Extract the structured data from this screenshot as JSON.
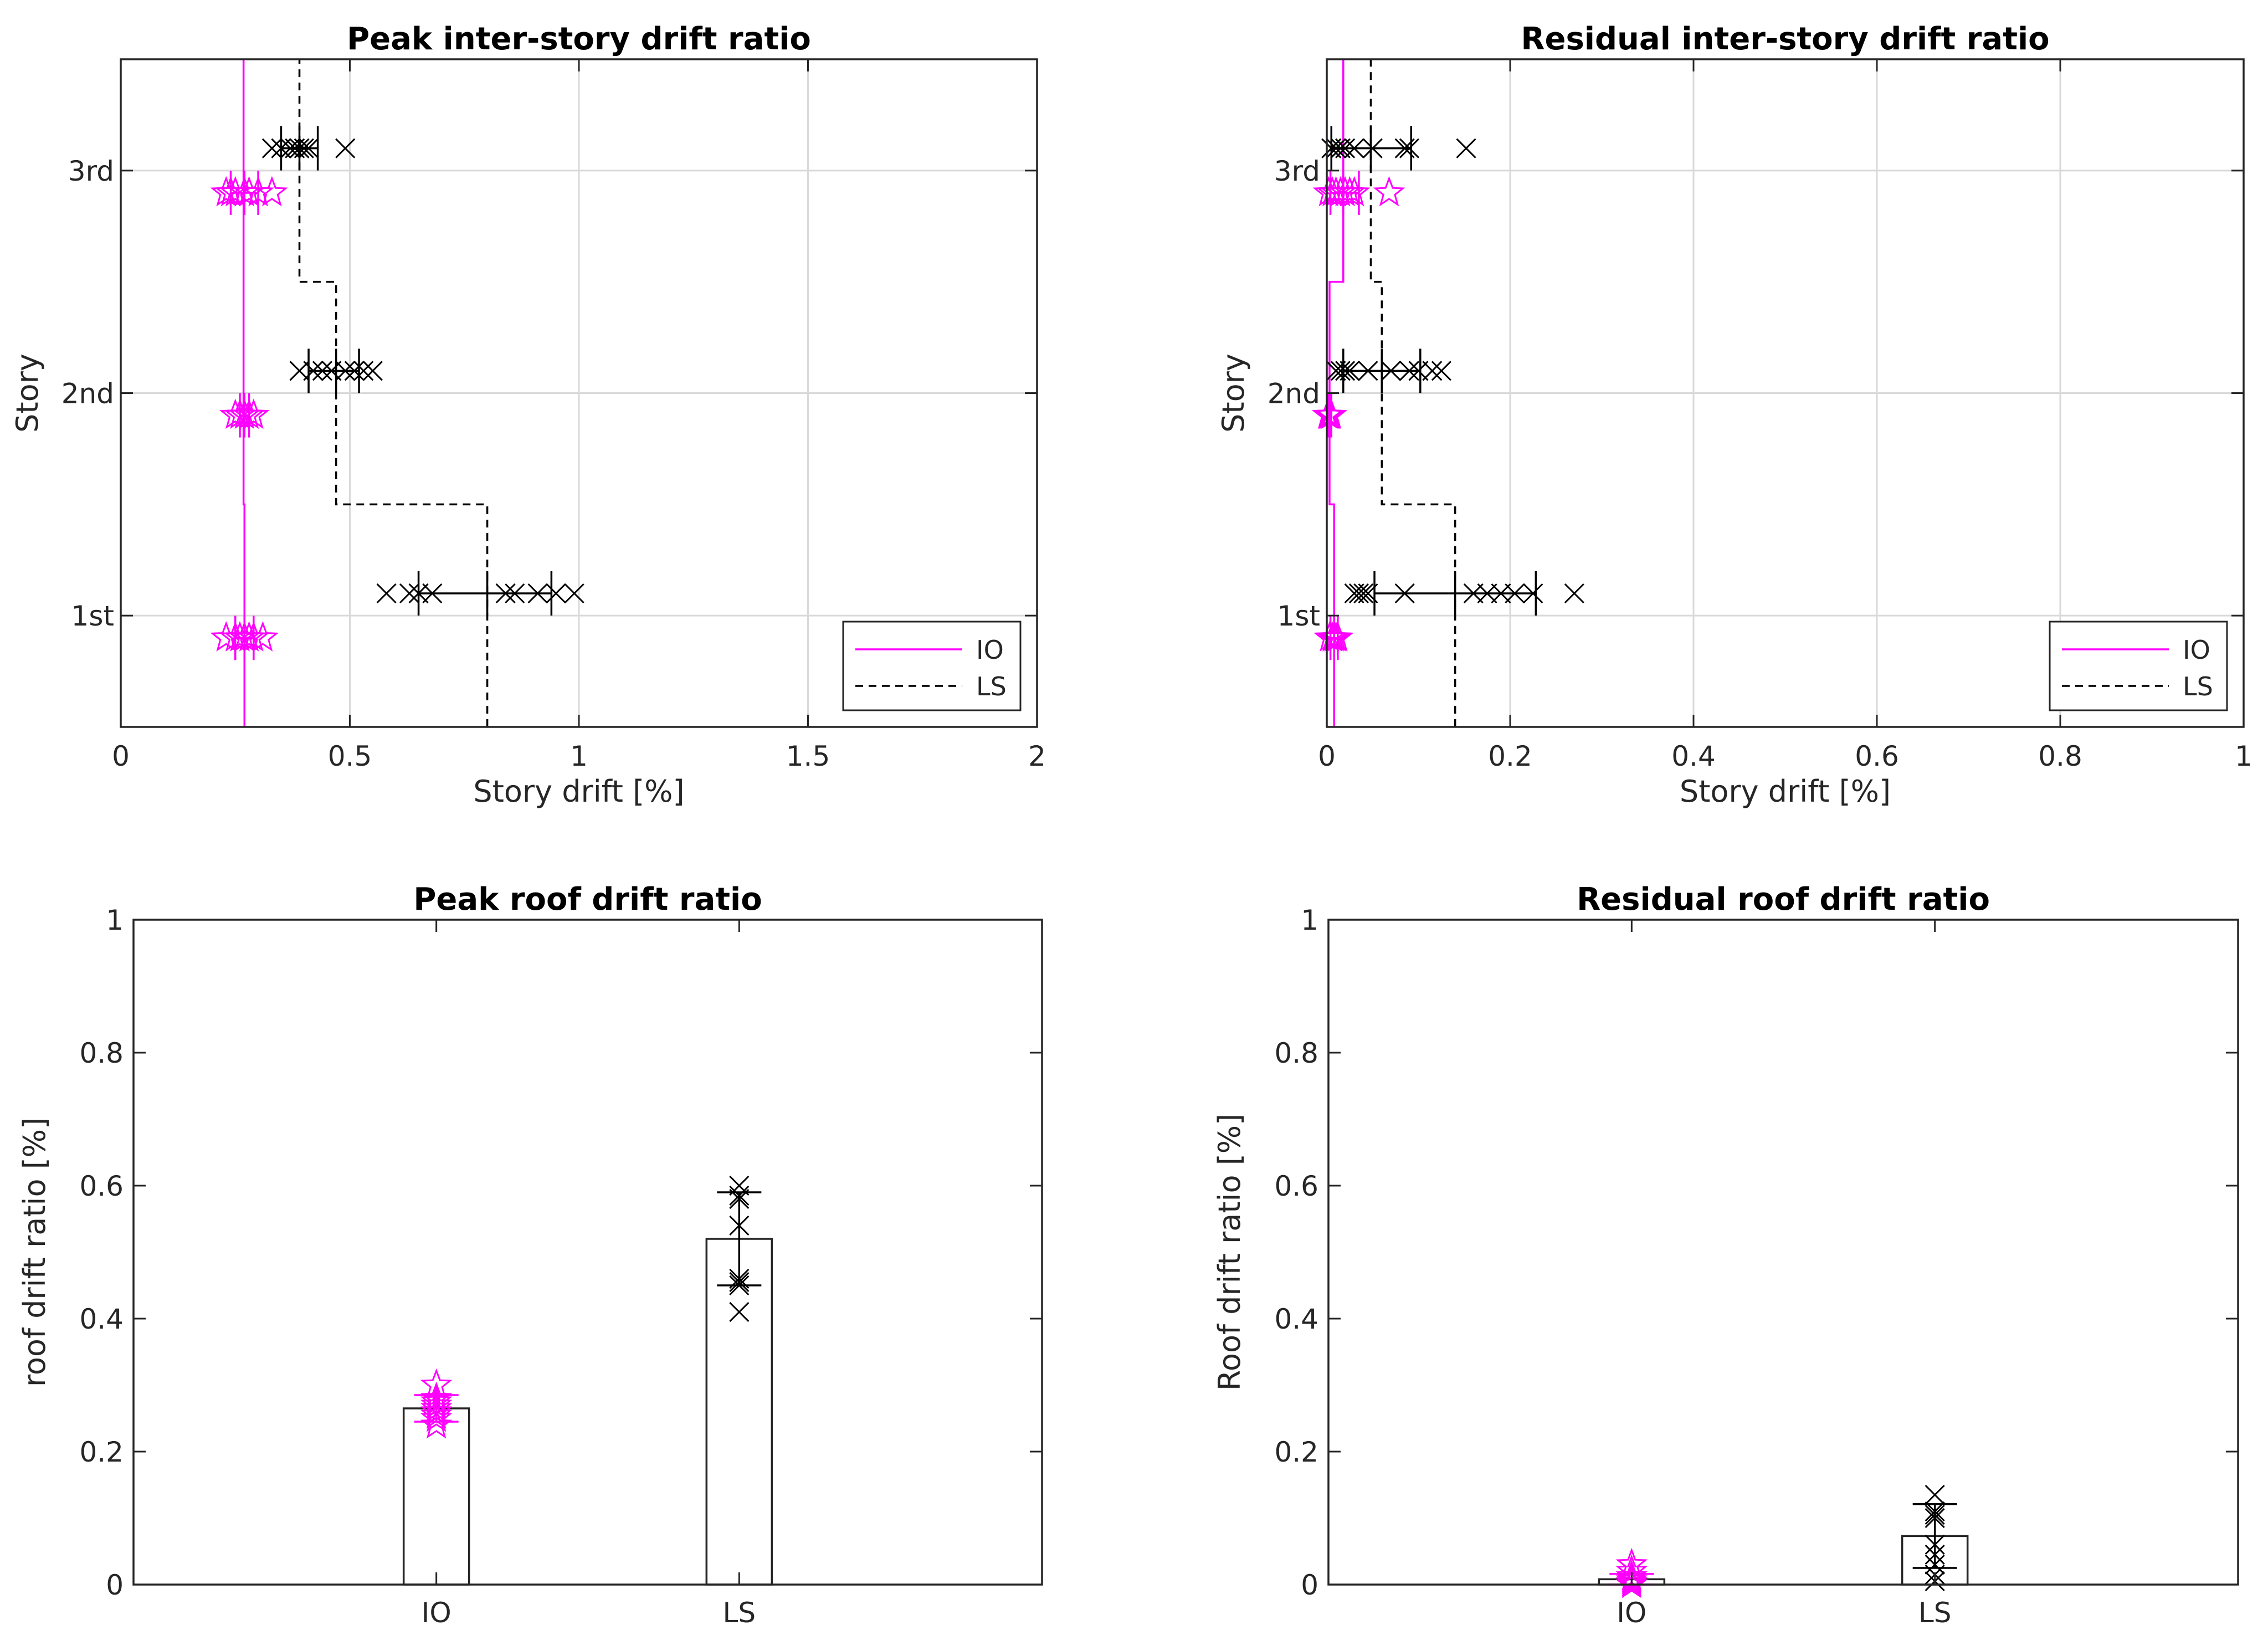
{
  "colors": {
    "io": "#ff00ff",
    "ls": "#000000",
    "grid": "#d9d9d9",
    "axis": "#262626"
  },
  "chart_data": [
    {
      "id": "peak_story",
      "type": "scatter",
      "orientation": "horizontal",
      "title": "Peak inter-story drift ratio",
      "xlabel": "Story drift [%]",
      "ylabel": "Story",
      "xlim": [
        0,
        2
      ],
      "ylim": [
        0.5,
        3.5
      ],
      "xticks": [
        0,
        0.5,
        1,
        1.5,
        2
      ],
      "xtick_labels": [
        "0",
        "0.5",
        "1",
        "1.5",
        "2"
      ],
      "yticks": [
        1,
        2,
        3
      ],
      "ytick_labels": [
        "1st",
        "2nd",
        "3rd"
      ],
      "grid": true,
      "legend": {
        "position": "bottom-right",
        "entries": [
          "IO",
          "LS"
        ]
      },
      "limits": [
        {
          "name": "IO",
          "color": "#ff00ff",
          "dash": "solid",
          "steps": [
            {
              "y0": 0.5,
              "y1": 1.5,
              "x": 0.27
            },
            {
              "y0": 1.5,
              "y1": 2.5,
              "x": 0.268
            },
            {
              "y0": 2.5,
              "y1": 3.5,
              "x": 0.268
            }
          ]
        },
        {
          "name": "LS",
          "color": "#000000",
          "dash": "dashed",
          "steps": [
            {
              "y0": 0.5,
              "y1": 1.5,
              "x": 0.8
            },
            {
              "y0": 1.5,
              "y1": 2.5,
              "x": 0.47
            },
            {
              "y0": 2.5,
              "y1": 3.5,
              "x": 0.39
            }
          ]
        }
      ],
      "series": [
        {
          "name": "IO",
          "marker": "star",
          "color": "#ff00ff",
          "groups": [
            {
              "y": 0.9,
              "values": [
                0.23,
                0.25,
                0.26,
                0.27,
                0.28,
                0.29,
                0.31
              ],
              "mean": 0.27,
              "spread": [
                0.25,
                0.29
              ]
            },
            {
              "y": 1.9,
              "values": [
                0.25,
                0.26,
                0.27,
                0.28,
                0.29
              ],
              "mean": 0.27,
              "spread": [
                0.26,
                0.28
              ]
            },
            {
              "y": 2.9,
              "values": [
                0.23,
                0.24,
                0.25,
                0.27,
                0.28,
                0.3,
                0.33
              ],
              "mean": 0.27,
              "spread": [
                0.24,
                0.3
              ]
            }
          ]
        },
        {
          "name": "LS",
          "marker": "x",
          "color": "#000000",
          "groups": [
            {
              "y": 1.1,
              "values": [
                0.58,
                0.63,
                0.65,
                0.68,
                0.84,
                0.86,
                0.91,
                0.95,
                0.99
              ],
              "mean": 0.8,
              "spread": [
                0.65,
                0.94
              ]
            },
            {
              "y": 2.1,
              "values": [
                0.39,
                0.42,
                0.44,
                0.46,
                0.49,
                0.51,
                0.53,
                0.55
              ],
              "mean": 0.47,
              "spread": [
                0.41,
                0.52
              ]
            },
            {
              "y": 3.1,
              "values": [
                0.33,
                0.35,
                0.37,
                0.38,
                0.39,
                0.4,
                0.41,
                0.49
              ],
              "mean": 0.39,
              "spread": [
                0.35,
                0.43
              ]
            }
          ]
        }
      ]
    },
    {
      "id": "residual_story",
      "type": "scatter",
      "orientation": "horizontal",
      "title": "Residual inter-story drift ratio",
      "xlabel": "Story drift [%]",
      "ylabel": "Story",
      "xlim": [
        0,
        1
      ],
      "ylim": [
        0.5,
        3.5
      ],
      "xticks": [
        0,
        0.2,
        0.4,
        0.6,
        0.8,
        1
      ],
      "xtick_labels": [
        "0",
        "0.2",
        "0.4",
        "0.6",
        "0.8",
        "1"
      ],
      "yticks": [
        1,
        2,
        3
      ],
      "ytick_labels": [
        "1st",
        "2nd",
        "3rd"
      ],
      "grid": true,
      "legend": {
        "position": "bottom-right",
        "entries": [
          "IO",
          "LS"
        ]
      },
      "limits": [
        {
          "name": "IO",
          "color": "#ff00ff",
          "dash": "solid",
          "steps": [
            {
              "y0": 0.5,
              "y1": 1.5,
              "x": 0.008
            },
            {
              "y0": 1.5,
              "y1": 2.5,
              "x": 0.003
            },
            {
              "y0": 2.5,
              "y1": 3.5,
              "x": 0.018
            }
          ]
        },
        {
          "name": "LS",
          "color": "#000000",
          "dash": "dashed",
          "steps": [
            {
              "y0": 0.5,
              "y1": 1.5,
              "x": 0.14
            },
            {
              "y0": 1.5,
              "y1": 2.5,
              "x": 0.06
            },
            {
              "y0": 2.5,
              "y1": 3.5,
              "x": 0.048
            }
          ]
        }
      ],
      "series": [
        {
          "name": "IO",
          "marker": "star",
          "color": "#ff00ff",
          "groups": [
            {
              "y": 0.9,
              "values": [
                0.003,
                0.006,
                0.008,
                0.01,
                0.012
              ],
              "mean": 0.008,
              "spread": [
                0.004,
                0.012
              ]
            },
            {
              "y": 1.9,
              "values": [
                0.001,
                0.002,
                0.003,
                0.004,
                0.005
              ],
              "mean": 0.003,
              "spread": [
                0.001,
                0.005
              ]
            },
            {
              "y": 2.9,
              "values": [
                0.002,
                0.006,
                0.01,
                0.015,
                0.02,
                0.025,
                0.03,
                0.068
              ],
              "mean": 0.018,
              "spread": [
                0.004,
                0.035
              ]
            }
          ]
        },
        {
          "name": "LS",
          "marker": "x",
          "color": "#000000",
          "groups": [
            {
              "y": 1.1,
              "values": [
                0.03,
                0.035,
                0.04,
                0.045,
                0.085,
                0.16,
                0.175,
                0.19,
                0.205,
                0.225,
                0.27
              ],
              "mean": 0.14,
              "spread": [
                0.052,
                0.228
              ]
            },
            {
              "y": 2.1,
              "values": [
                0.01,
                0.015,
                0.02,
                0.025,
                0.045,
                0.07,
                0.09,
                0.1,
                0.115,
                0.125
              ],
              "mean": 0.06,
              "spread": [
                0.018,
                0.102
              ]
            },
            {
              "y": 3.1,
              "values": [
                0.005,
                0.01,
                0.015,
                0.02,
                0.03,
                0.05,
                0.085,
                0.09,
                0.152
              ],
              "mean": 0.048,
              "spread": [
                0.005,
                0.092
              ]
            }
          ]
        }
      ]
    },
    {
      "id": "peak_roof",
      "type": "bar",
      "title": "Peak roof drift ratio",
      "xlabel": "",
      "ylabel": "roof drift ratio [%]",
      "categories": [
        "IO",
        "LS"
      ],
      "values": [
        0.265,
        0.52
      ],
      "ylim": [
        0,
        1
      ],
      "yticks": [
        0,
        0.2,
        0.4,
        0.6,
        0.8,
        1
      ],
      "ytick_labels": [
        "0",
        "0.2",
        "0.4",
        "0.6",
        "0.8",
        "1"
      ],
      "grid": false,
      "errorbars": [
        [
          0.245,
          0.285
        ],
        [
          0.45,
          0.59
        ]
      ],
      "points": [
        {
          "category": "IO",
          "marker": "star",
          "color": "#ff00ff",
          "values": [
            0.24,
            0.25,
            0.255,
            0.26,
            0.265,
            0.27,
            0.275,
            0.28,
            0.3
          ]
        },
        {
          "category": "LS",
          "marker": "x",
          "color": "#000000",
          "values": [
            0.41,
            0.45,
            0.455,
            0.46,
            0.54,
            0.58,
            0.585,
            0.6
          ]
        }
      ]
    },
    {
      "id": "residual_roof",
      "type": "bar",
      "title": "Residual roof drift ratio",
      "xlabel": "",
      "ylabel": "Roof drift ratio [%]",
      "categories": [
        "IO",
        "LS"
      ],
      "values": [
        0.008,
        0.073
      ],
      "ylim": [
        0,
        1
      ],
      "yticks": [
        0,
        0.2,
        0.4,
        0.6,
        0.8,
        1
      ],
      "ytick_labels": [
        "0",
        "0.2",
        "0.4",
        "0.6",
        "0.8",
        "1"
      ],
      "grid": false,
      "errorbars": [
        [
          0.0,
          0.016
        ],
        [
          0.025,
          0.121
        ]
      ],
      "points": [
        {
          "category": "IO",
          "marker": "star",
          "color": "#ff00ff",
          "values": [
            0.0,
            0.003,
            0.006,
            0.009,
            0.012,
            0.02,
            0.03
          ]
        },
        {
          "category": "LS",
          "marker": "x",
          "color": "#000000",
          "values": [
            0.005,
            0.015,
            0.03,
            0.045,
            0.06,
            0.1,
            0.105,
            0.11,
            0.135
          ]
        }
      ]
    }
  ]
}
